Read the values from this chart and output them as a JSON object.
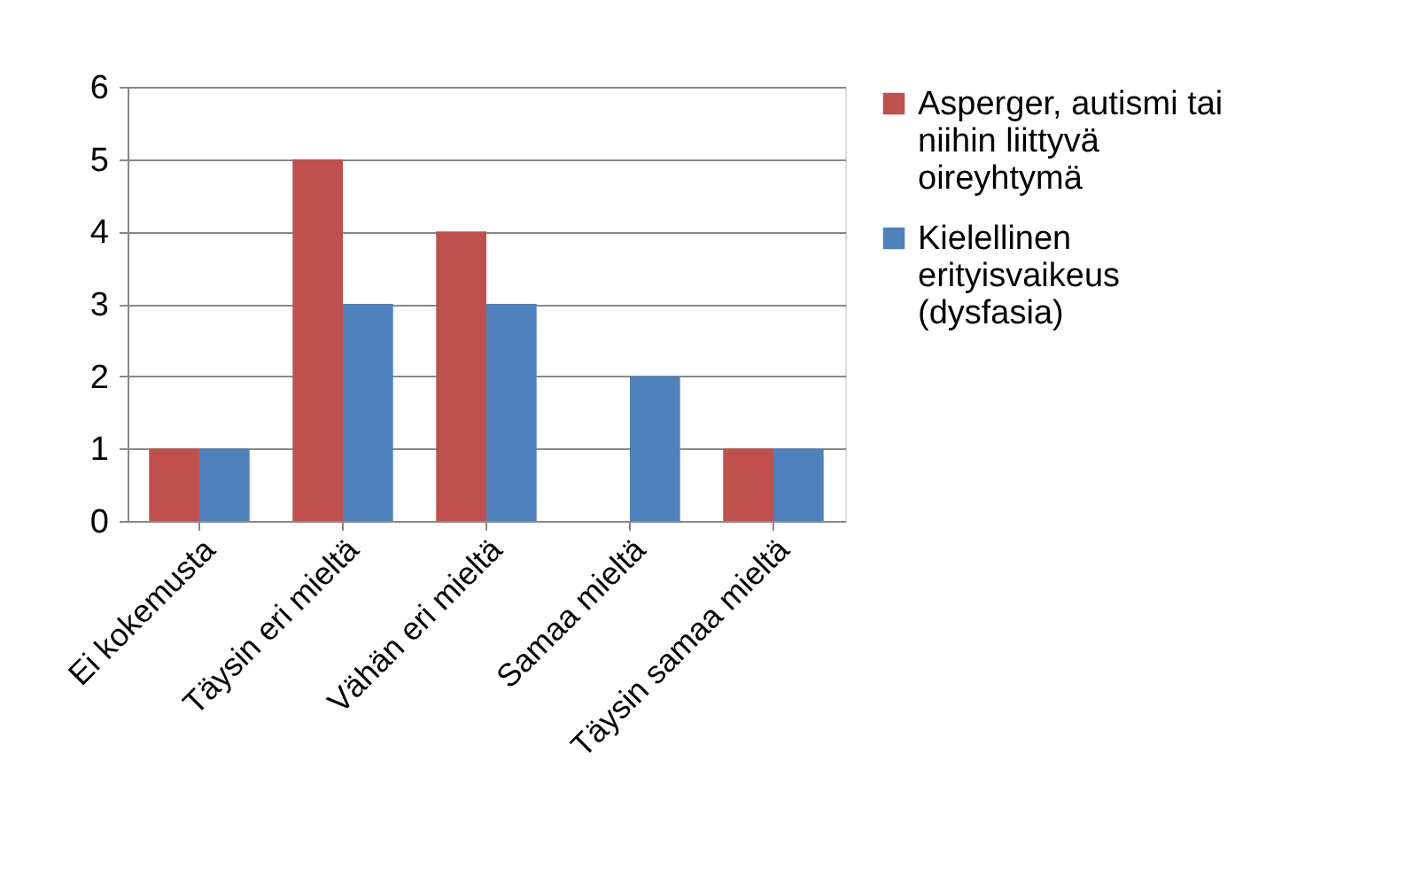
{
  "chart_data": {
    "type": "bar",
    "categories": [
      "Ei kokemusta",
      "Täysin eri mieltä",
      "Vähän eri mieltä",
      "Samaa mieltä",
      "Täysin samaa mieltä"
    ],
    "series": [
      {
        "name": "Asperger, autismi tai niihin liittyvä oireyhtymä",
        "color": "#c0504d",
        "values": [
          1,
          5,
          4,
          0,
          1
        ]
      },
      {
        "name": "Kielellinen erityisvaikeus (dysfasia)",
        "color": "#4f81bd",
        "values": [
          1,
          3,
          3,
          2,
          1
        ]
      }
    ],
    "ylim": [
      0,
      6
    ],
    "yticks": [
      0,
      1,
      2,
      3,
      4,
      5,
      6
    ],
    "grid": "y",
    "legend": "right"
  }
}
